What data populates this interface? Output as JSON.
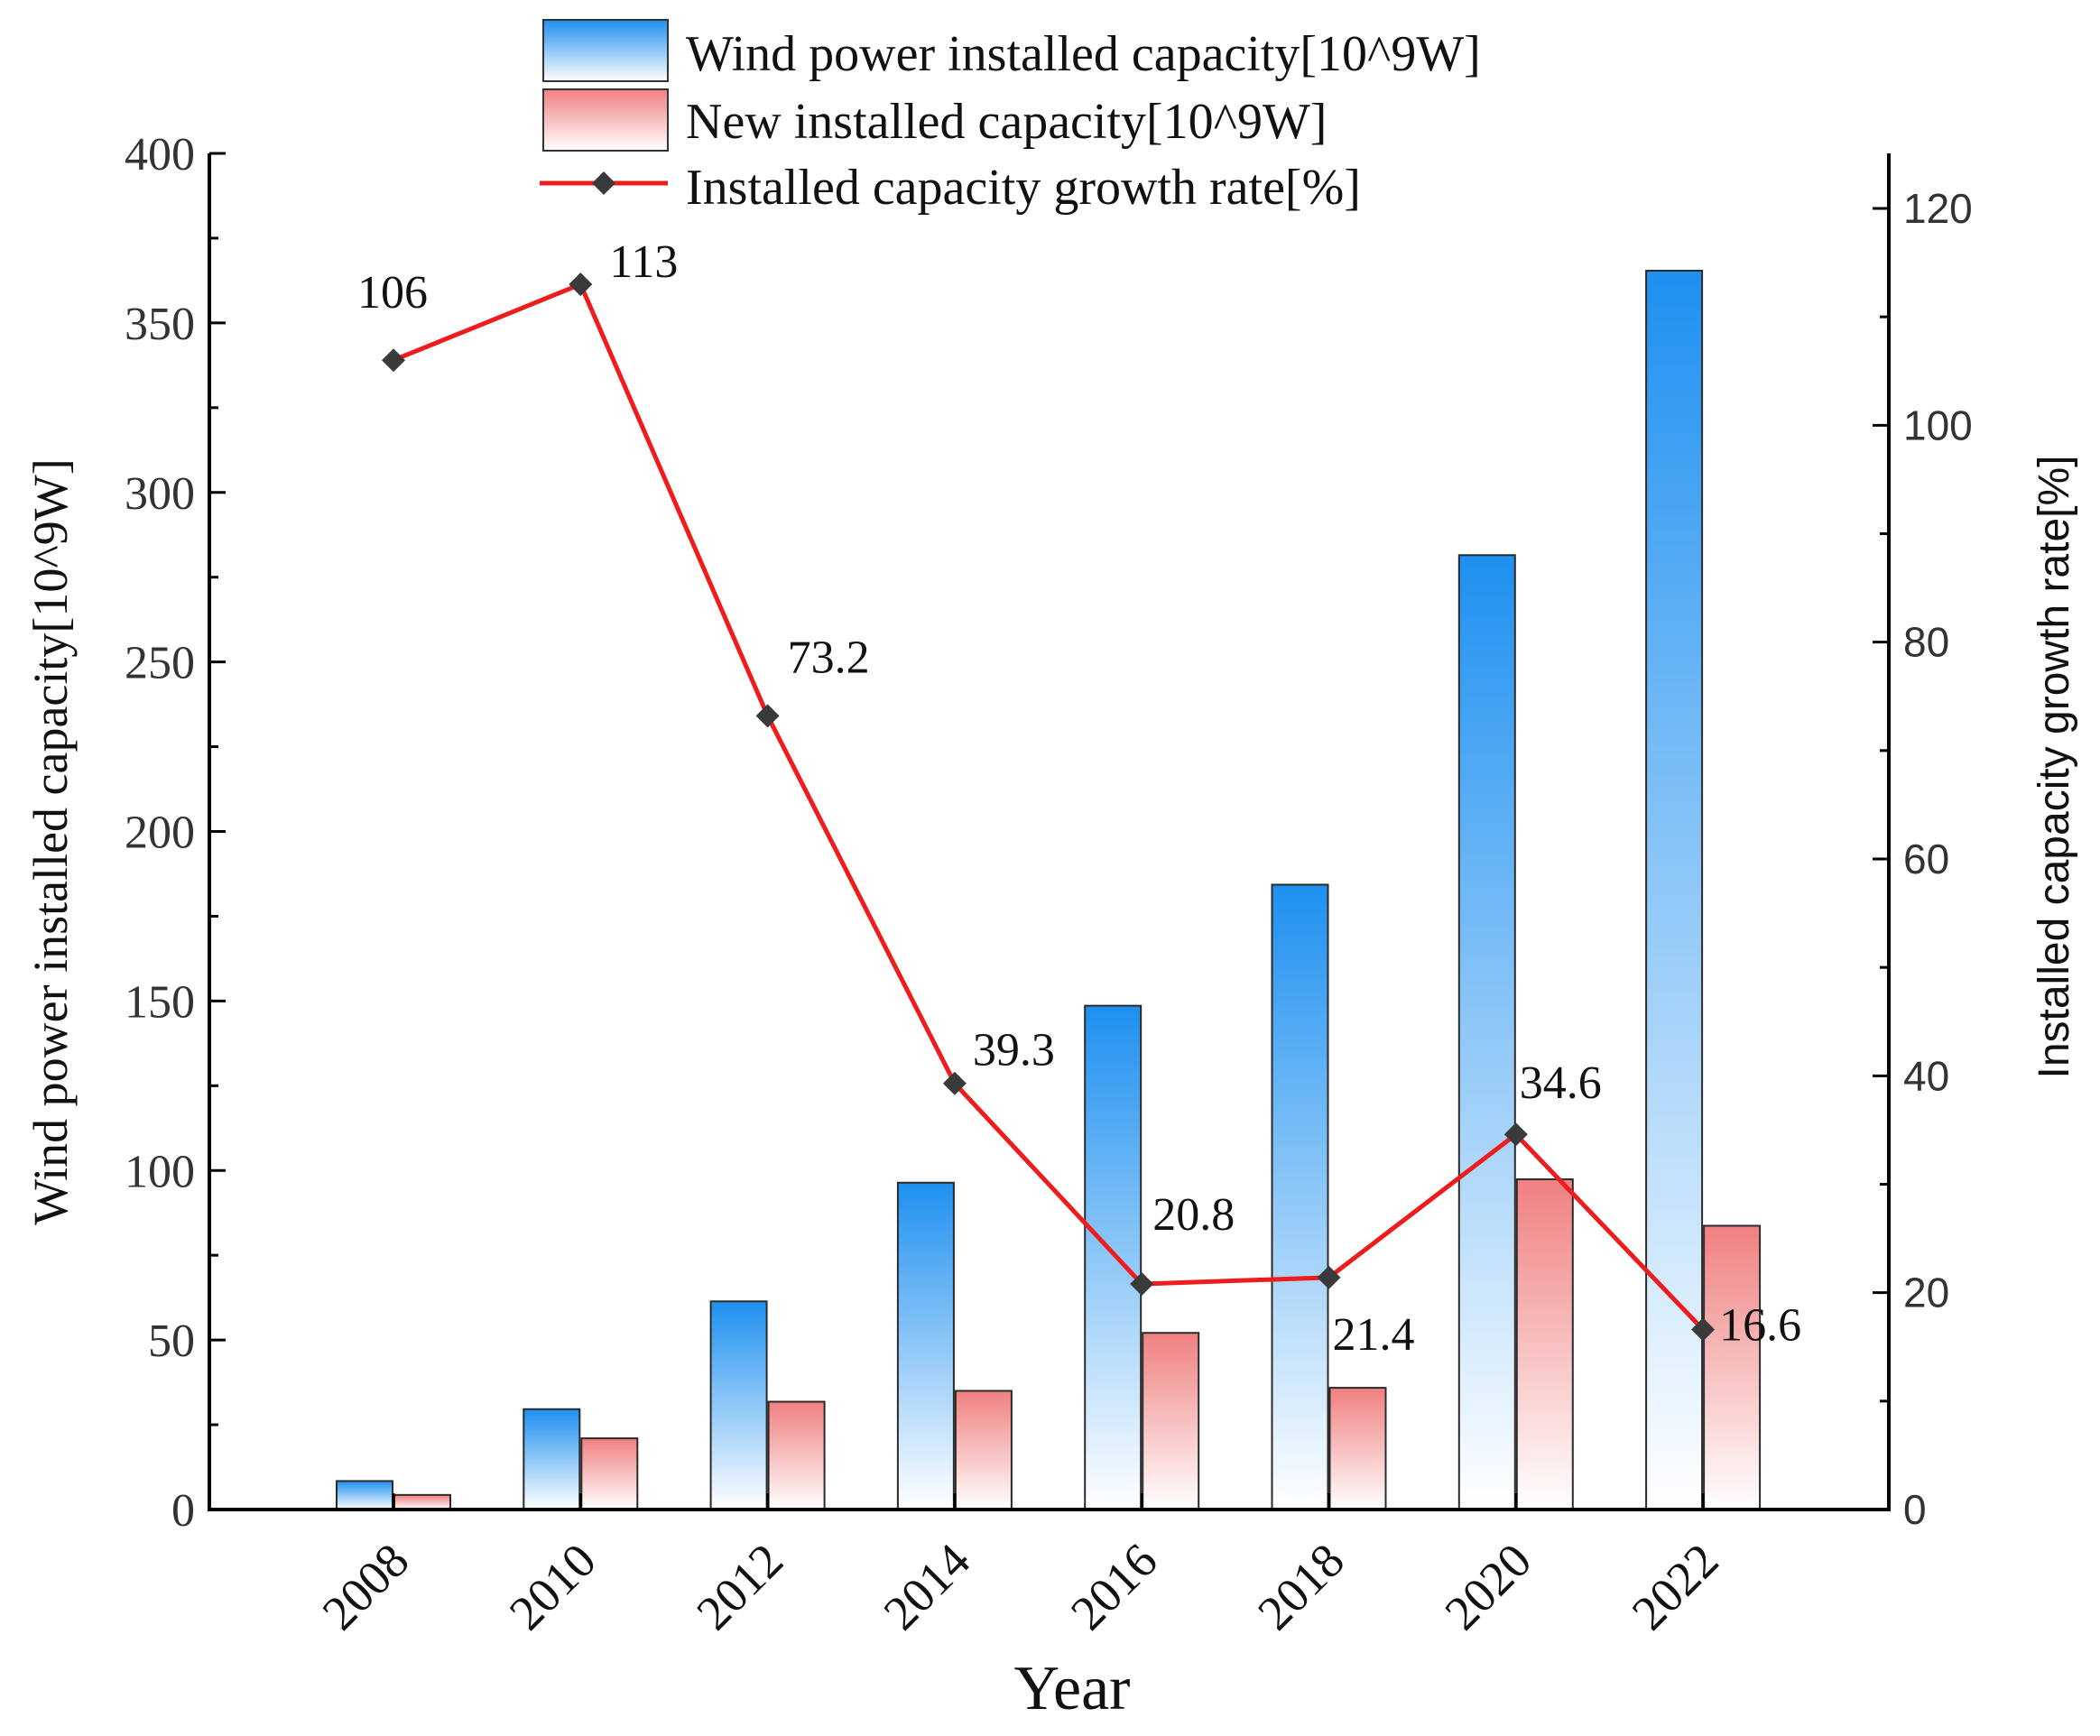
{
  "chart_data": {
    "type": "bar",
    "categories": [
      "2008",
      "2010",
      "2012",
      "2014",
      "2016",
      "2018",
      "2020",
      "2022"
    ],
    "xlabel": "Year",
    "ylabel": "Wind power installed capacity[10^9W]",
    "ylabel_right": "Installed capacity growth rate[%]",
    "ylim": [
      0,
      400
    ],
    "ylim_right": [
      0,
      125
    ],
    "yticks": [
      0,
      50,
      100,
      150,
      200,
      250,
      300,
      350,
      400
    ],
    "yticks_right": [
      0,
      20,
      40,
      60,
      80,
      100,
      120
    ],
    "grid": false,
    "legend_position": "top-center",
    "series": [
      {
        "name": "Wind power installed capacity[10^9W]",
        "type": "bar",
        "axis": "left",
        "values": [
          8.4,
          29.6,
          61.4,
          96.4,
          148.6,
          184.3,
          281.5,
          365.4
        ],
        "color_top": "#1e90f0",
        "color_bottom": "#ffffff"
      },
      {
        "name": "New installed capacity[10^9W]",
        "type": "bar",
        "axis": "left",
        "values": [
          4.3,
          21.0,
          31.8,
          35.0,
          52.1,
          35.9,
          97.4,
          83.7
        ],
        "color_top": "#f08080",
        "color_bottom": "#ffffff"
      },
      {
        "name": "Installed capacity growth rate[%]",
        "type": "line",
        "axis": "right",
        "values": [
          106,
          113,
          73.2,
          39.3,
          20.8,
          21.4,
          34.6,
          16.6
        ],
        "labels": [
          "106",
          "113",
          "73.2",
          "39.3",
          "20.8",
          "21.4",
          "34.6",
          "16.6"
        ],
        "line_color": "#ee1c1c",
        "marker_color": "#3a3a3a",
        "marker": "diamond"
      }
    ]
  }
}
